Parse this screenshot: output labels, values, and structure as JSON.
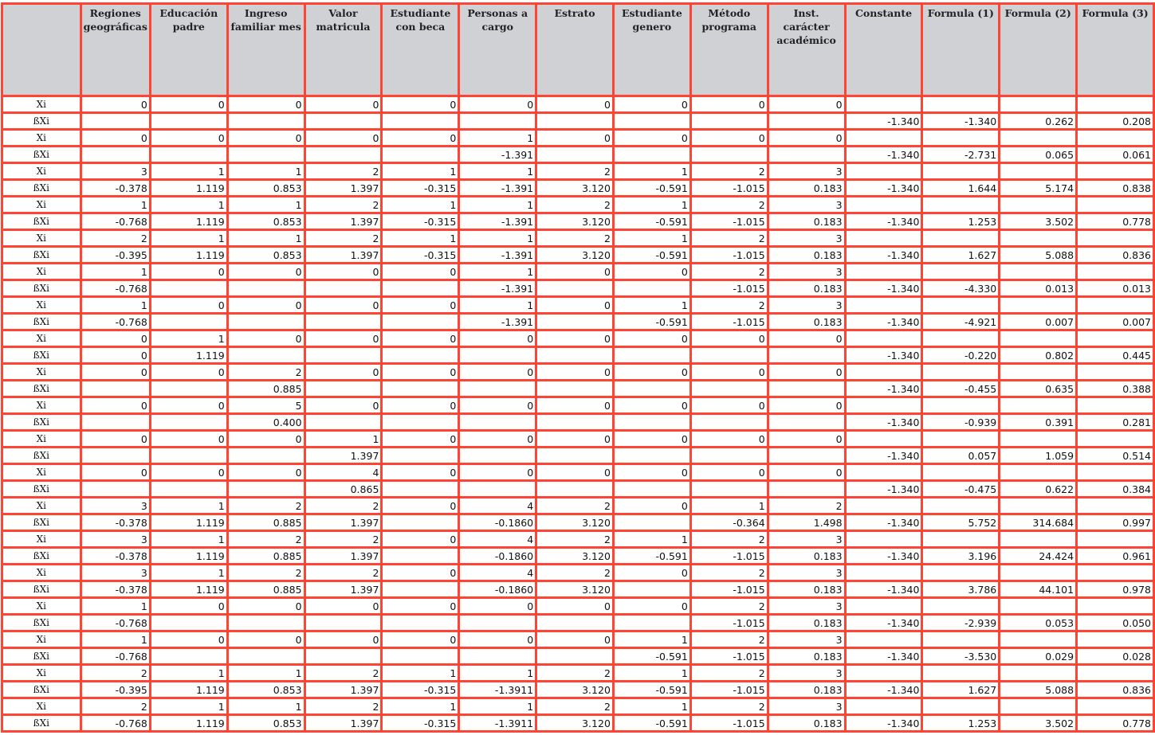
{
  "headers": [
    "",
    "Regiones geográficas",
    "Educación padre",
    "Ingreso familiar mes",
    "Valor matricula",
    "Estudiante con beca",
    "Personas a cargo",
    "Estrato",
    "Estudiante genero",
    "Método programa",
    "Inst. carácter académico",
    "Constante",
    "Formula (1)",
    "Formula (2)",
    "Formula (3)"
  ],
  "rows": [
    [
      "Xi",
      "0",
      "0",
      "0",
      "0",
      "0",
      "0",
      "0",
      "0",
      "0",
      "0",
      "",
      "",
      "",
      ""
    ],
    [
      "ßXi",
      "",
      "",
      "",
      "",
      "",
      "",
      "",
      "",
      "",
      "",
      "-1.340",
      "-1.340",
      "0.262",
      "0.208"
    ],
    [
      "Xi",
      "0",
      "0",
      "0",
      "0",
      "0",
      "1",
      "0",
      "0",
      "0",
      "0",
      "",
      "",
      "",
      ""
    ],
    [
      "ßXi",
      "",
      "",
      "",
      "",
      "",
      "-1.391",
      "",
      "",
      "",
      "",
      "-1.340",
      "-2.731",
      "0.065",
      "0.061"
    ],
    [
      "Xi",
      "3",
      "1",
      "1",
      "2",
      "1",
      "1",
      "2",
      "1",
      "2",
      "3",
      "",
      "",
      "",
      ""
    ],
    [
      "ßXi",
      "-0.378",
      "1.119",
      "0.853",
      "1.397",
      "-0.315",
      "-1.391",
      "3.120",
      "-0.591",
      "-1.015",
      "0.183",
      "-1.340",
      "1.644",
      "5.174",
      "0.838"
    ],
    [
      "Xi",
      "1",
      "1",
      "1",
      "2",
      "1",
      "1",
      "2",
      "1",
      "2",
      "3",
      "",
      "",
      "",
      ""
    ],
    [
      "ßXi",
      "-0.768",
      "1.119",
      "0.853",
      "1.397",
      "-0.315",
      "-1.391",
      "3.120",
      "-0.591",
      "-1.015",
      "0.183",
      "-1.340",
      "1.253",
      "3.502",
      "0.778"
    ],
    [
      "Xi",
      "2",
      "1",
      "1",
      "2",
      "1",
      "1",
      "2",
      "1",
      "2",
      "3",
      "",
      "",
      "",
      ""
    ],
    [
      "ßXi",
      "-0.395",
      "1.119",
      "0.853",
      "1.397",
      "-0.315",
      "-1.391",
      "3.120",
      "-0.591",
      "-1.015",
      "0.183",
      "-1.340",
      "1.627",
      "5.088",
      "0.836"
    ],
    [
      "Xi",
      "1",
      "0",
      "0",
      "0",
      "0",
      "1",
      "0",
      "0",
      "2",
      "3",
      "",
      "",
      "",
      ""
    ],
    [
      "ßXi",
      "-0.768",
      "",
      "",
      "",
      "",
      "-1.391",
      "",
      "",
      "-1.015",
      "0.183",
      "-1.340",
      "-4.330",
      "0.013",
      "0.013"
    ],
    [
      "Xi",
      "1",
      "0",
      "0",
      "0",
      "0",
      "1",
      "0",
      "1",
      "2",
      "3",
      "",
      "",
      "",
      ""
    ],
    [
      "ßXi",
      "-0.768",
      "",
      "",
      "",
      "",
      "-1.391",
      "",
      "-0.591",
      "-1.015",
      "0.183",
      "-1.340",
      "-4.921",
      "0.007",
      "0.007"
    ],
    [
      "Xi",
      "0",
      "1",
      "0",
      "0",
      "0",
      "0",
      "0",
      "0",
      "0",
      "0",
      "",
      "",
      "",
      ""
    ],
    [
      "ßXi",
      "0",
      "1.119",
      "",
      "",
      "",
      "",
      "",
      "",
      "",
      "",
      "-1.340",
      "-0.220",
      "0.802",
      "0.445"
    ],
    [
      "Xi",
      "0",
      "0",
      "2",
      "0",
      "0",
      "0",
      "0",
      "0",
      "0",
      "0",
      "",
      "",
      "",
      ""
    ],
    [
      "ßXi",
      "",
      "",
      "0.885",
      "",
      "",
      "",
      "",
      "",
      "",
      "",
      "-1.340",
      "-0.455",
      "0.635",
      "0.388"
    ],
    [
      "Xi",
      "0",
      "0",
      "5",
      "0",
      "0",
      "0",
      "0",
      "0",
      "0",
      "0",
      "",
      "",
      "",
      ""
    ],
    [
      "ßXi",
      "",
      "",
      "0.400",
      "",
      "",
      "",
      "",
      "",
      "",
      "",
      "-1.340",
      "-0.939",
      "0.391",
      "0.281"
    ],
    [
      "Xi",
      "0",
      "0",
      "0",
      "1",
      "0",
      "0",
      "0",
      "0",
      "0",
      "0",
      "",
      "",
      "",
      ""
    ],
    [
      "ßXi",
      "",
      "",
      "",
      "1.397",
      "",
      "",
      "",
      "",
      "",
      "",
      "-1.340",
      "0.057",
      "1.059",
      "0.514"
    ],
    [
      "Xi",
      "0",
      "0",
      "0",
      "4",
      "0",
      "0",
      "0",
      "0",
      "0",
      "0",
      "",
      "",
      "",
      ""
    ],
    [
      "ßXi",
      "",
      "",
      "",
      "0.865",
      "",
      "",
      "",
      "",
      "",
      "",
      "-1.340",
      "-0.475",
      "0.622",
      "0.384"
    ],
    [
      "Xi",
      "3",
      "1",
      "2",
      "2",
      "0",
      "4",
      "2",
      "0",
      "1",
      "2",
      "",
      "",
      "",
      ""
    ],
    [
      "ßXi",
      "-0.378",
      "1.119",
      "0.885",
      "1.397",
      "",
      "-0.1860",
      "3.120",
      "",
      "-0.364",
      "1.498",
      "-1.340",
      "5.752",
      "314.684",
      "0.997"
    ],
    [
      "Xi",
      "3",
      "1",
      "2",
      "2",
      "0",
      "4",
      "2",
      "1",
      "2",
      "3",
      "",
      "",
      "",
      ""
    ],
    [
      "ßXi",
      "-0.378",
      "1.119",
      "0.885",
      "1.397",
      "",
      "-0.1860",
      "3.120",
      "-0.591",
      "-1.015",
      "0.183",
      "-1.340",
      "3.196",
      "24.424",
      "0.961"
    ],
    [
      "Xi",
      "3",
      "1",
      "2",
      "2",
      "0",
      "4",
      "2",
      "0",
      "2",
      "3",
      "",
      "",
      "",
      ""
    ],
    [
      "ßXi",
      "-0.378",
      "1.119",
      "0.885",
      "1.397",
      "",
      "-0.1860",
      "3.120",
      "",
      "-1.015",
      "0.183",
      "-1.340",
      "3.786",
      "44.101",
      "0.978"
    ],
    [
      "Xi",
      "1",
      "0",
      "0",
      "0",
      "0",
      "0",
      "0",
      "0",
      "2",
      "3",
      "",
      "",
      "",
      ""
    ],
    [
      "ßXi",
      "-0.768",
      "",
      "",
      "",
      "",
      "",
      "",
      "",
      "-1.015",
      "0.183",
      "-1.340",
      "-2.939",
      "0.053",
      "0.050"
    ],
    [
      "Xi",
      "1",
      "0",
      "0",
      "0",
      "0",
      "0",
      "0",
      "1",
      "2",
      "3",
      "",
      "",
      "",
      ""
    ],
    [
      "ßXi",
      "-0.768",
      "",
      "",
      "",
      "",
      "",
      "",
      "-0.591",
      "-1.015",
      "0.183",
      "-1.340",
      "-3.530",
      "0.029",
      "0.028"
    ],
    [
      "Xi",
      "2",
      "1",
      "1",
      "2",
      "1",
      "1",
      "2",
      "1",
      "2",
      "3",
      "",
      "",
      "",
      ""
    ],
    [
      "ßXi",
      "-0.395",
      "1.119",
      "0.853",
      "1.397",
      "-0.315",
      "-1.3911",
      "3.120",
      "-0.591",
      "-1.015",
      "0.183",
      "-1.340",
      "1.627",
      "5.088",
      "0.836"
    ],
    [
      "Xi",
      "2",
      "1",
      "1",
      "2",
      "1",
      "1",
      "2",
      "1",
      "2",
      "3",
      "",
      "",
      "",
      ""
    ],
    [
      "ßXi",
      "-0.768",
      "1.119",
      "0.853",
      "1.397",
      "-0.315",
      "-1.3911",
      "3.120",
      "-0.591",
      "-1.015",
      "0.183",
      "-1.340",
      "1.253",
      "3.502",
      "0.778"
    ]
  ]
}
